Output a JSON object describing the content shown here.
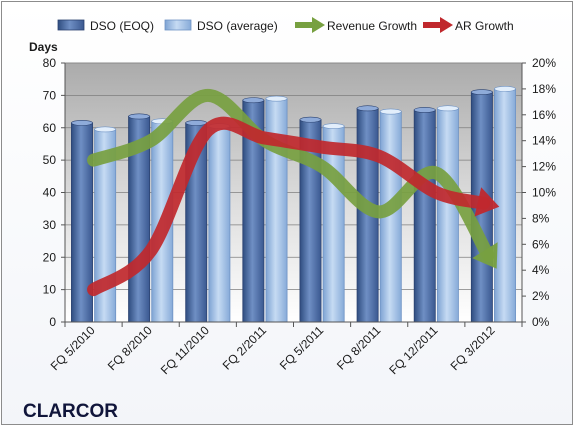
{
  "chart_data": {
    "type": "bar",
    "categories": [
      "FQ 5/2010",
      "FQ 8/2010",
      "FQ 11/2010",
      "FQ 2/2011",
      "FQ 5/2011",
      "FQ 8/2011",
      "FQ 12/2011",
      "FQ 3/2012"
    ],
    "series": [
      {
        "name": "DSO (EOQ)",
        "type": "bar",
        "axis": "left",
        "values": [
          61.5,
          63.5,
          61.5,
          68.5,
          62.5,
          66,
          65.5,
          71
        ],
        "color": "#4f6fa8"
      },
      {
        "name": "DSO (average)",
        "type": "bar",
        "axis": "left",
        "values": [
          59.5,
          62,
          60.5,
          69,
          60.5,
          65,
          66,
          72
        ],
        "color": "#a9c4e8"
      },
      {
        "name": "Revenue Growth",
        "type": "line",
        "axis": "right",
        "style": "thick arrow",
        "values": [
          0.125,
          0.14,
          0.175,
          0.14,
          0.12,
          0.085,
          0.115,
          0.045
        ],
        "color": "#77a040"
      },
      {
        "name": "AR Growth",
        "type": "line",
        "axis": "right",
        "style": "thick arrow",
        "values": [
          0.025,
          0.055,
          0.148,
          0.142,
          0.135,
          0.128,
          0.1,
          0.09
        ],
        "color": "#c0282d"
      }
    ],
    "y_left": {
      "label": "Days",
      "ylim": [
        0,
        80
      ],
      "ticks": [
        "0",
        "10",
        "20",
        "30",
        "40",
        "50",
        "60",
        "70",
        "80"
      ]
    },
    "y_right": {
      "ylim": [
        0,
        0.2
      ],
      "ticks": [
        "0%",
        "2%",
        "4%",
        "6%",
        "8%",
        "10%",
        "12%",
        "14%",
        "16%",
        "18%",
        "20%"
      ]
    },
    "grid": true,
    "legend_position": "top",
    "company": "CLARCOR"
  }
}
